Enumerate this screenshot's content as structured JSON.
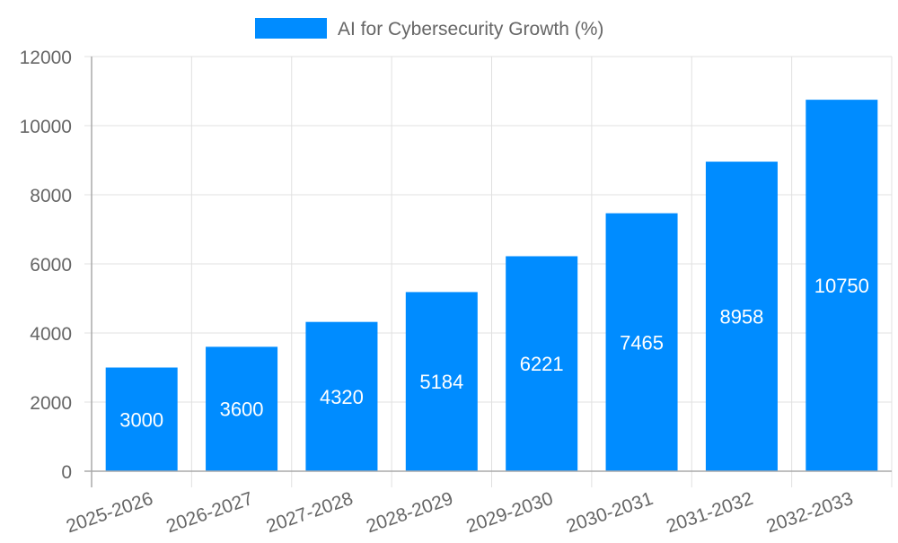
{
  "chart_data": {
    "type": "bar",
    "title": "",
    "legend": {
      "label": "AI for Cybersecurity Growth (%)",
      "position": "top"
    },
    "categories": [
      "2025-2026",
      "2026-2027",
      "2027-2028",
      "2028-2029",
      "2029-2030",
      "2030-2031",
      "2031-2032",
      "2032-2033"
    ],
    "series": [
      {
        "name": "AI for Cybersecurity Growth (%)",
        "values": [
          3000,
          3600,
          4320,
          5184,
          6221,
          7465,
          8958,
          10750
        ],
        "color": "#008cff"
      }
    ],
    "yticks": [
      0,
      2000,
      4000,
      6000,
      8000,
      10000,
      12000
    ],
    "ylim": [
      0,
      12000
    ],
    "xlabel": "",
    "ylabel": "",
    "grid": true
  }
}
